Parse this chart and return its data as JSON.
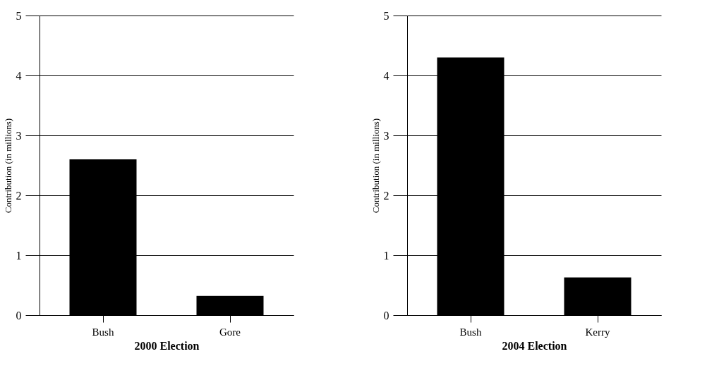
{
  "chart_data": [
    {
      "type": "bar",
      "xlabel": "2000 Election",
      "ylabel": "Contribution (in millions)",
      "categories": [
        "Bush",
        "Gore"
      ],
      "values": [
        2.6,
        0.32
      ],
      "color": "#000000",
      "ylim": [
        0,
        5
      ],
      "yticks": [
        0,
        1,
        2,
        3,
        4,
        5
      ],
      "grid": "y"
    },
    {
      "type": "bar",
      "xlabel": "2004 Election",
      "ylabel": "Contribution (in millions)",
      "categories": [
        "Bush",
        "Kerry"
      ],
      "values": [
        4.3,
        0.63
      ],
      "color": "#000000",
      "ylim": [
        0,
        5
      ],
      "yticks": [
        0,
        1,
        2,
        3,
        4,
        5
      ],
      "grid": "y"
    }
  ]
}
